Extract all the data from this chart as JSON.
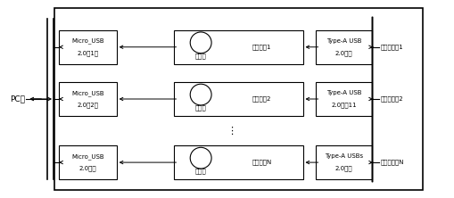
{
  "fig_width": 5.09,
  "fig_height": 2.22,
  "dpi": 100,
  "bg_color": "#ffffff",
  "pc_label": "PC机",
  "row_labels": [
    {
      "micro_line1": "Micro_USB",
      "micro_line2": "2.0接1口",
      "core_label": "核心电路1",
      "typea_line1": "Type-A USB",
      "typea_line2": "2.0接口",
      "device": "待检测设备1"
    },
    {
      "micro_line1": "Micro_USB",
      "micro_line2": "2.0接2口",
      "core_label": "核心电路2",
      "typea_line1": "Type-A USB",
      "typea_line2": "2.0接口11",
      "device": "待检建设备2"
    },
    {
      "micro_line1": "Micro_USB",
      "micro_line2": "2.0接口",
      "core_label": "核心电路N",
      "typea_line1": "Type-A USBs",
      "typea_line2": "2.0接口",
      "device": "待检测设备N"
    }
  ],
  "indicator_label": "指示灯",
  "dots": "⋮",
  "font_size": 5.0,
  "line_color": "#000000"
}
